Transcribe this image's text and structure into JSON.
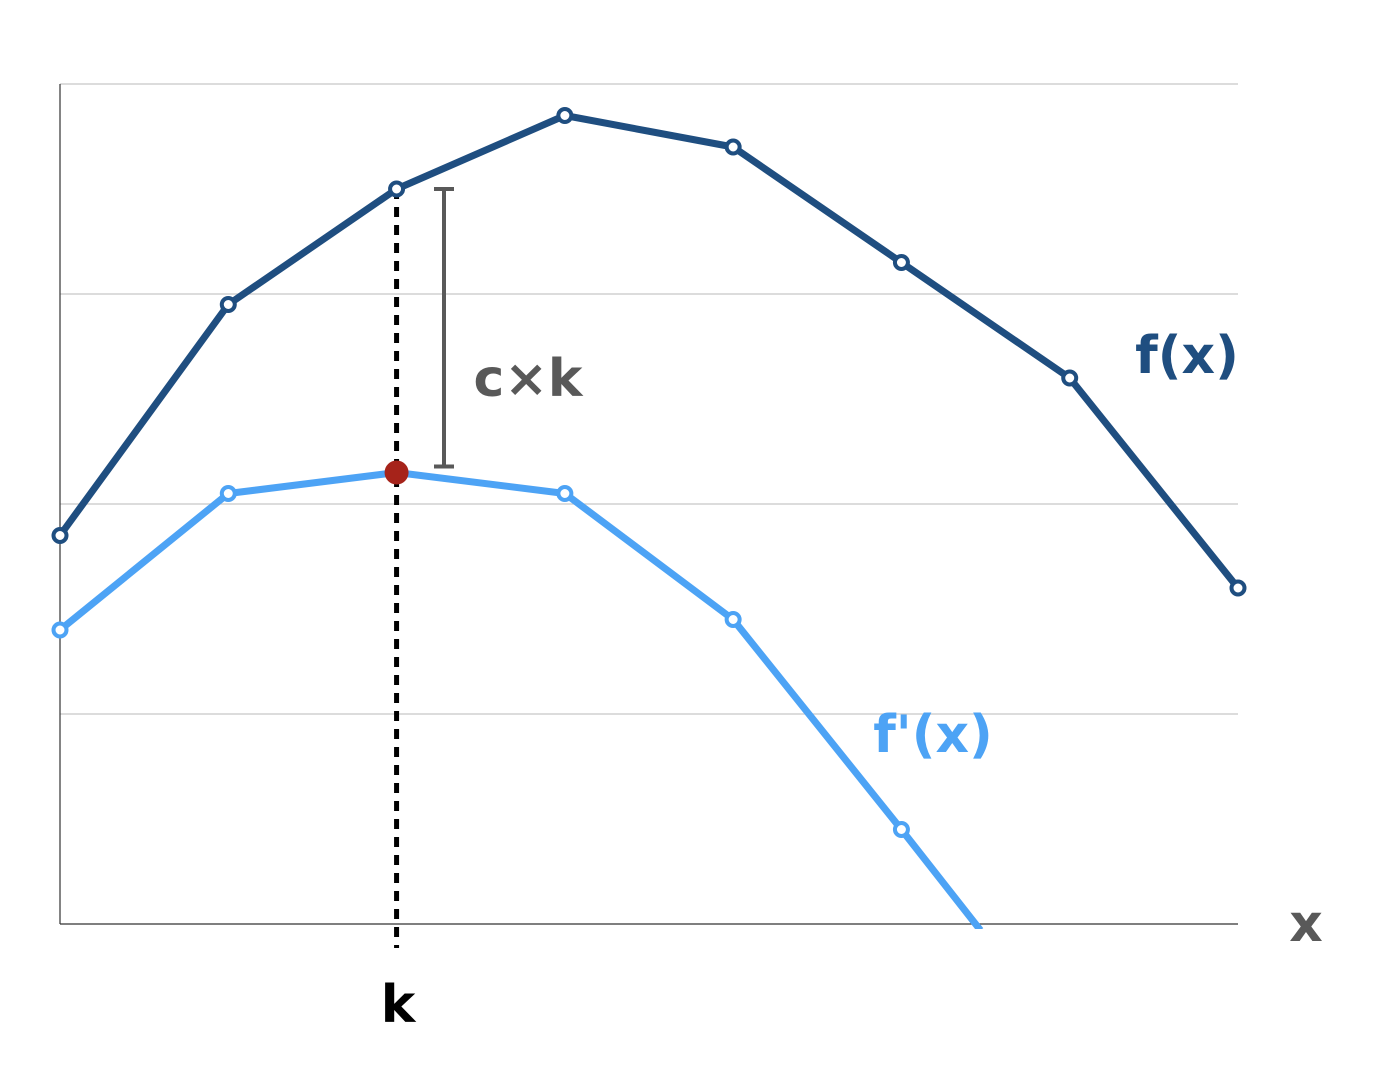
{
  "chart_data": {
    "type": "line",
    "x": [
      0,
      1,
      2,
      3,
      4,
      5,
      6,
      7
    ],
    "xlim": [
      0,
      7
    ],
    "ylim": [
      0,
      4
    ],
    "grid": true,
    "xlabel": "x",
    "series": [
      {
        "name": "f(x)",
        "color": "#1f4e80",
        "x": [
          0,
          1,
          2,
          3,
          4,
          5,
          6,
          7
        ],
        "values": [
          1.85,
          2.95,
          3.5,
          3.85,
          3.7,
          3.15,
          2.6,
          1.6
        ]
      },
      {
        "name": "f'(x)",
        "color": "#4da3f5",
        "x": [
          0,
          1,
          2,
          3,
          4,
          5,
          5.47
        ],
        "values": [
          1.4,
          2.05,
          2.15,
          2.05,
          1.45,
          0.45,
          -0.03
        ]
      }
    ],
    "annotations": {
      "k_label": "k",
      "k_x": 2,
      "k_point_value": 2.15,
      "k_point_color": "#a6231a",
      "ck_label": "c×k",
      "ck_top": 3.5,
      "ck_bottom": 2.15,
      "ck_color": "#595959"
    },
    "labels": {
      "f": "f(x)",
      "fprime": "f'(x)"
    }
  }
}
